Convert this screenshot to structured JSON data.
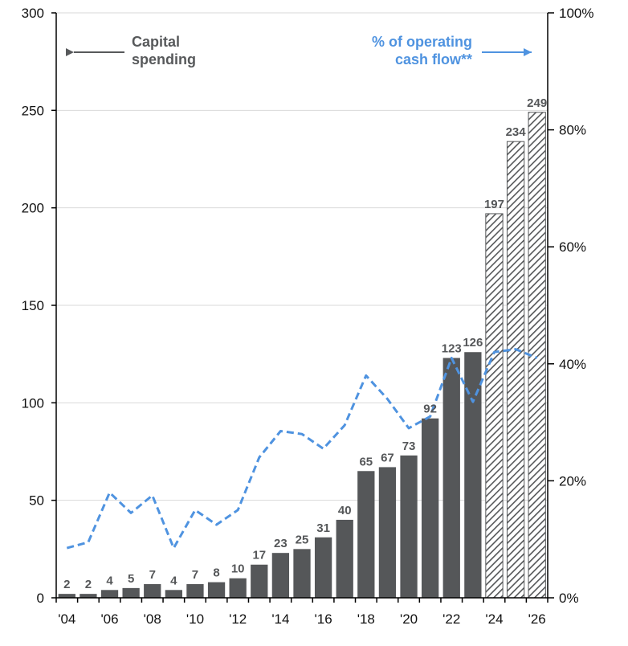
{
  "chart_data": {
    "type": "bar",
    "title": "",
    "xlabel": "",
    "ylabel": "",
    "ylim": [
      0,
      300
    ],
    "yticks": [
      "0",
      "50",
      "100",
      "150",
      "200",
      "250",
      "300"
    ],
    "y2lim": [
      0,
      100
    ],
    "y2ticks": [
      "0%",
      "20%",
      "40%",
      "60%",
      "80%",
      "100%"
    ],
    "xtick_labels": [
      "'04",
      "'06",
      "'08",
      "'10",
      "'12",
      "'14",
      "'16",
      "'18",
      "'20",
      "'22",
      "'24",
      "'26"
    ],
    "categories": [
      2004,
      2005,
      2006,
      2007,
      2008,
      2009,
      2010,
      2011,
      2012,
      2013,
      2014,
      2015,
      2016,
      2017,
      2018,
      2019,
      2020,
      2021,
      2022,
      2023,
      2024,
      2025,
      2026
    ],
    "series": [
      {
        "name": "Capital spending",
        "axis": "left",
        "type": "bar",
        "color": "#555759",
        "values": [
          2,
          2,
          4,
          5,
          7,
          4,
          7,
          8,
          10,
          17,
          23,
          25,
          31,
          40,
          65,
          67,
          73,
          92,
          123,
          126,
          197,
          234,
          249
        ],
        "labels": [
          "2",
          "2",
          "4",
          "5",
          "7",
          "4",
          "7",
          "8",
          "10",
          "17",
          "23",
          "25",
          "31",
          "40",
          "65",
          "67",
          "73",
          "92",
          "123",
          "126",
          "197",
          "234",
          "249"
        ],
        "estimated_from_index": 20
      },
      {
        "name": "% of operating cash flow**",
        "axis": "right",
        "type": "line",
        "style": "dashed",
        "color": "#4f93e0",
        "values": [
          8.5,
          9.5,
          18,
          14.5,
          17.5,
          8.5,
          15,
          12.5,
          15,
          24,
          28.5,
          28,
          25.5,
          29.5,
          38,
          34,
          29,
          31,
          41,
          33.5,
          42,
          42.5,
          41
        ]
      }
    ],
    "annotations": {
      "capital_line1": "Capital",
      "capital_line2": "spending",
      "pct_line1": "% of operating",
      "pct_line2": "cash flow**"
    }
  }
}
